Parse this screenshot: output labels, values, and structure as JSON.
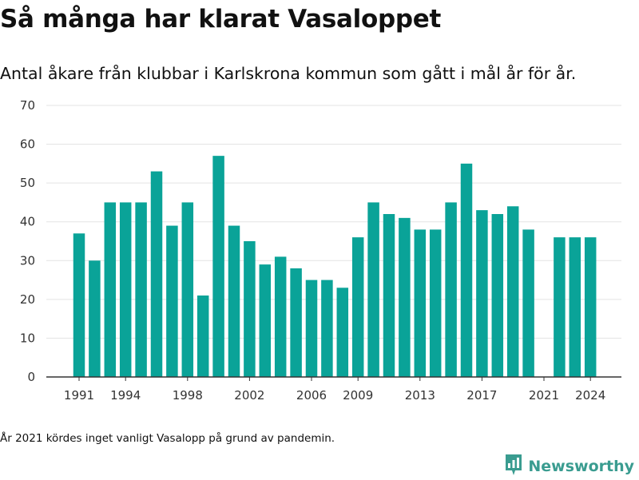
{
  "title": "Så många har klarat Vasaloppet",
  "subtitle": "Antal åkare från klubbar i Karlskrona kommun som gått i mål år för år.",
  "footnote": "År 2021 kördes inget vanligt Vasalopp på grund av pandemin.",
  "brand": {
    "name": "Newsworthy",
    "icon": "newsworthy-logo-icon",
    "color": "#3a9c90"
  },
  "colors": {
    "bar": "#0aa398",
    "grid": "#e3e3e3",
    "axis": "#333333"
  },
  "chart_data": {
    "type": "bar",
    "title": "Så många har klarat Vasaloppet",
    "xlabel": "",
    "ylabel": "",
    "categories": [
      1991,
      1992,
      1993,
      1994,
      1995,
      1996,
      1997,
      1998,
      1999,
      2000,
      2001,
      2002,
      2003,
      2004,
      2005,
      2006,
      2007,
      2008,
      2009,
      2010,
      2011,
      2012,
      2013,
      2014,
      2015,
      2016,
      2017,
      2018,
      2019,
      2020,
      2021,
      2022,
      2023,
      2024
    ],
    "values": [
      37,
      30,
      45,
      45,
      45,
      53,
      39,
      45,
      21,
      57,
      39,
      35,
      29,
      31,
      28,
      25,
      25,
      23,
      36,
      45,
      42,
      41,
      38,
      38,
      45,
      55,
      43,
      42,
      44,
      38,
      null,
      36,
      36,
      36
    ],
    "x_ticks": [
      "1991",
      "1994",
      "1998",
      "2002",
      "2006",
      "2009",
      "2013",
      "2017",
      "2021",
      "2024"
    ],
    "y_ticks": [
      0,
      10,
      20,
      30,
      40,
      50,
      60,
      70
    ],
    "ylim": [
      0,
      70
    ],
    "grid": true,
    "legend": "none"
  }
}
